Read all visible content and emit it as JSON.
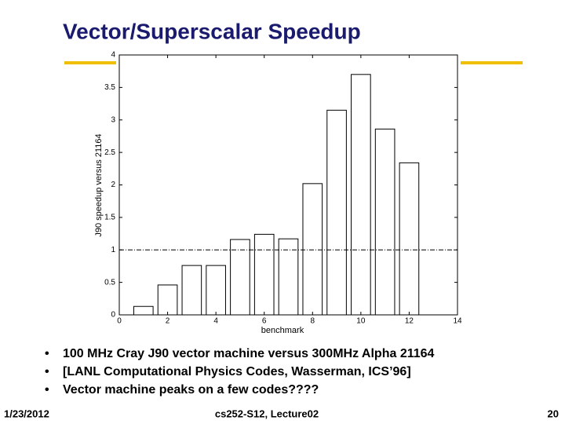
{
  "slide": {
    "title": "Vector/Superscalar Speedup",
    "bullets": [
      "100 MHz Cray J90 vector machine versus 300MHz Alpha 21164",
      "[LANL Computational Physics Codes, Wasserman, ICS’96]",
      "Vector machine peaks on a few codes????"
    ],
    "footer": {
      "date": "1/23/2012",
      "course": "cs252-S12, Lecture02",
      "page": "20"
    }
  },
  "chart_data": {
    "type": "bar",
    "x_label": "benchmark",
    "y_label": "J90 speedup versus 21164",
    "x": [
      1,
      2,
      3,
      4,
      5,
      6,
      7,
      8,
      9,
      10,
      11,
      12
    ],
    "values": [
      0.13,
      0.46,
      0.76,
      0.76,
      1.16,
      1.24,
      1.17,
      2.02,
      3.15,
      3.7,
      2.86,
      2.34
    ],
    "color": "#ffffff",
    "edge_color": "#000000",
    "xlim": [
      0,
      14
    ],
    "xticks": [
      0,
      2,
      4,
      6,
      8,
      10,
      12,
      14
    ],
    "ylim": [
      0,
      4
    ],
    "yticks": [
      0,
      0.5,
      1,
      1.5,
      2,
      2.5,
      3,
      3.5,
      4
    ],
    "reference_line": 1
  }
}
